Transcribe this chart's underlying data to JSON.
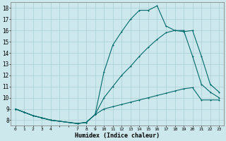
{
  "xlabel": "Humidex (Indice chaleur)",
  "background_color": "#cce8ec",
  "grid_color": "#aacdd4",
  "line_color": "#006b6b",
  "xlim": [
    -0.5,
    23.5
  ],
  "ylim": [
    7.5,
    18.5
  ],
  "yticks": [
    8,
    9,
    10,
    11,
    12,
    13,
    14,
    15,
    16,
    17,
    18
  ],
  "xtick_labels": [
    "0",
    "1",
    "2",
    "3",
    "4",
    "",
    "",
    "7",
    "8",
    "9",
    "10",
    "11",
    "12",
    "13",
    "14",
    "15",
    "16",
    "17",
    "18",
    "19",
    "20",
    "21",
    "22",
    "23"
  ],
  "line1_x": [
    0,
    1,
    2,
    3,
    4,
    7,
    8,
    9,
    10,
    11,
    12,
    13,
    14,
    15,
    16,
    17,
    18,
    19,
    20,
    21,
    22,
    23
  ],
  "line1_y": [
    9.0,
    8.7,
    8.4,
    8.2,
    8.0,
    7.7,
    7.8,
    8.5,
    9.0,
    9.2,
    9.4,
    9.6,
    9.8,
    10.0,
    10.2,
    10.4,
    10.6,
    10.8,
    10.9,
    9.8,
    9.8,
    9.8
  ],
  "line2_x": [
    0,
    1,
    2,
    3,
    4,
    7,
    8,
    9,
    10,
    11,
    12,
    13,
    14,
    15,
    16,
    17,
    18,
    19,
    20,
    21,
    22,
    23
  ],
  "line2_y": [
    9.0,
    8.7,
    8.4,
    8.2,
    8.0,
    7.7,
    7.8,
    8.5,
    10.0,
    11.0,
    12.0,
    12.8,
    13.7,
    14.5,
    15.2,
    15.8,
    16.0,
    16.0,
    13.7,
    11.2,
    10.5,
    10.0
  ],
  "line3_x": [
    0,
    1,
    2,
    3,
    4,
    7,
    8,
    9,
    10,
    11,
    12,
    13,
    14,
    15,
    16,
    17,
    18,
    19,
    20,
    21,
    22,
    23
  ],
  "line3_y": [
    9.0,
    8.7,
    8.4,
    8.2,
    8.0,
    7.7,
    7.8,
    8.5,
    12.3,
    14.7,
    15.9,
    17.0,
    17.8,
    17.8,
    18.2,
    16.4,
    16.0,
    15.9,
    16.0,
    13.7,
    11.2,
    10.5
  ]
}
